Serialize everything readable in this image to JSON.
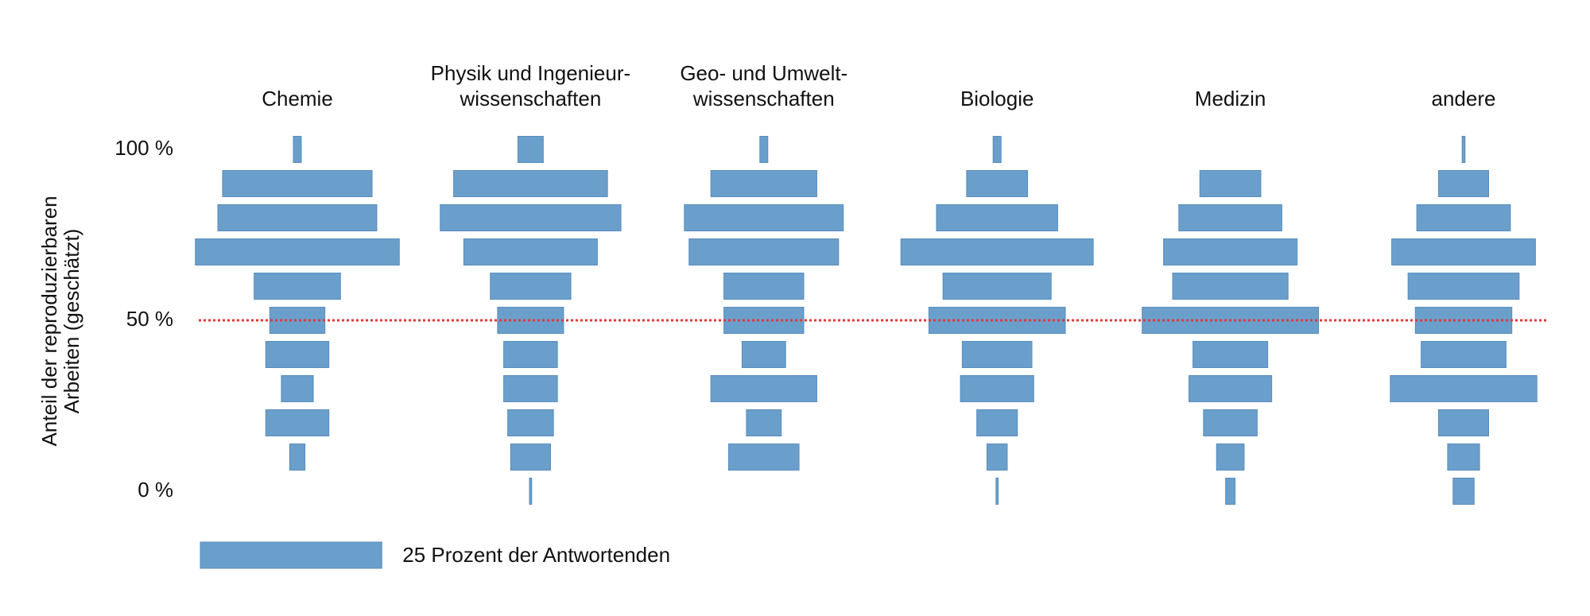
{
  "chart_data": {
    "type": "bar",
    "y_label": [
      "Anteil der reproduzierbaren",
      "Arbeiten (geschätzt)"
    ],
    "categories": [
      [
        "Chemie"
      ],
      [
        "Physik und Ingenieur-",
        "wissenschaften"
      ],
      [
        "Geo- und Umwelt-",
        "wissenschaften"
      ],
      [
        "Biologie"
      ],
      [
        "Medizin"
      ],
      [
        "andere"
      ]
    ],
    "levels": [
      100,
      90,
      80,
      70,
      60,
      50,
      40,
      30,
      20,
      10,
      0
    ],
    "values": [
      [
        1.1,
        20.6,
        21.9,
        28.1,
        11.9,
        7.6,
        8.7,
        4.4,
        8.7,
        2.1,
        0
      ],
      [
        3.5,
        21.2,
        24.9,
        18.4,
        11.1,
        9.1,
        7.4,
        7.4,
        6.3,
        5.5,
        0.3
      ],
      [
        1.1,
        14.6,
        21.9,
        20.6,
        11.0,
        11.0,
        6.0,
        14.6,
        4.8,
        9.7,
        0
      ],
      [
        1.1,
        8.4,
        16.7,
        26.5,
        14.9,
        18.8,
        9.6,
        10.1,
        5.6,
        2.8,
        0.3
      ],
      [
        0,
        8.4,
        14.2,
        18.4,
        15.9,
        24.3,
        10.3,
        11.4,
        7.4,
        3.8,
        1.3
      ],
      [
        0.4,
        6.9,
        12.9,
        19.8,
        15.3,
        13.3,
        11.7,
        20.2,
        6.9,
        4.4,
        2.9
      ]
    ],
    "color": "#6a9fcc",
    "ylim": [
      0,
      100
    ],
    "yticks": [
      {
        "value": 100,
        "label": "100 %"
      },
      {
        "value": 50,
        "label": "50 %"
      },
      {
        "value": 0,
        "label": "0 %"
      }
    ],
    "reference_line": {
      "value": 50,
      "color": "#e03a3a"
    },
    "scale_bar": {
      "value": 25,
      "label": "25 Prozent der Antwortenden"
    }
  }
}
